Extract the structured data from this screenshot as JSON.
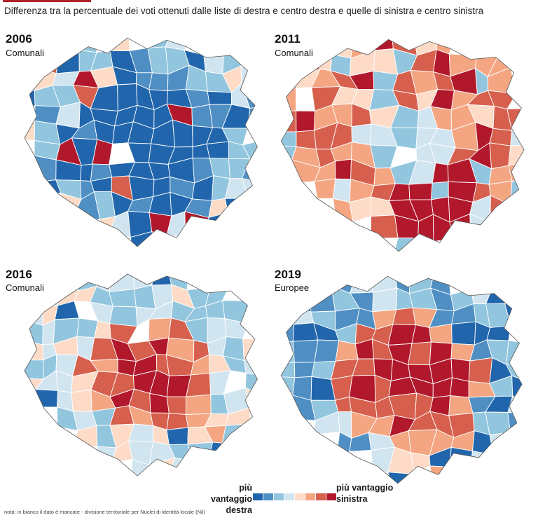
{
  "header": {
    "title": "Differenza tra la percentuale dei voti ottenuti dalle liste di destra e centro destra  e quelle di sinistra e centro sinistra"
  },
  "palette": {
    "dark_blue": "#2166ac",
    "mid_blue": "#4f8fc4",
    "light_blue": "#92c5de",
    "pale_blue": "#d1e5f0",
    "pale_red": "#fddbc7",
    "light_red": "#f4a582",
    "mid_red": "#d6604d",
    "dark_red": "#b2182b",
    "nodata": "#ffffff",
    "accent": "#b0202a"
  },
  "maps": [
    {
      "year": "2006",
      "type": "Comunali",
      "tint": "right"
    },
    {
      "year": "2011",
      "type": "Comunali",
      "tint": "left"
    },
    {
      "year": "2016",
      "type": "Comunali",
      "tint": "mixed"
    },
    {
      "year": "2019",
      "type": "Europee",
      "tint": "polarized"
    }
  ],
  "legend": {
    "left_label": "più vantaggio destra",
    "right_label": "più vantaggio sinistra",
    "steps": [
      "#2166ac",
      "#4f8fc4",
      "#92c5de",
      "#d1e5f0",
      "#fddbc7",
      "#f4a582",
      "#d6604d",
      "#b2182b"
    ]
  },
  "footnote": "nota: in bianco il dato è mancate - divisione territoriale per Nuclei di identità locale (Nil)"
}
